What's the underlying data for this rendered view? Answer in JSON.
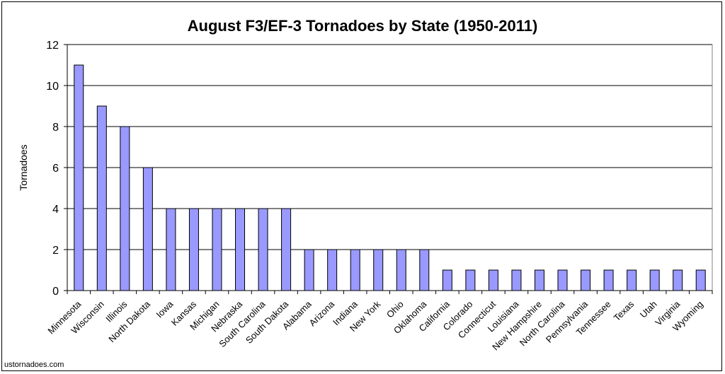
{
  "chart_data": {
    "type": "bar",
    "title": "August F3/EF-3 Tornadoes by State (1950-2011)",
    "ylabel": "Tornadoes",
    "xlabel": "",
    "ylim": [
      0,
      12
    ],
    "yticks": [
      0,
      2,
      4,
      6,
      8,
      10,
      12
    ],
    "grid": true,
    "bar_color": "#9999ff",
    "categories": [
      "Minnesota",
      "Wisconsin",
      "Illinois",
      "North Dakota",
      "Iowa",
      "Kansas",
      "Michigan",
      "Nebraska",
      "South Carolina",
      "South Dakota",
      "Alabama",
      "Arizona",
      "Indiana",
      "New York",
      "Ohio",
      "Oklahoma",
      "California",
      "Colorado",
      "Connecticut",
      "Louisiana",
      "New Hampshire",
      "North Carolina",
      "Pennsylvania",
      "Tennessee",
      "Texas",
      "Utah",
      "Virginia",
      "Wyoming"
    ],
    "values": [
      11,
      9,
      8,
      6,
      4,
      4,
      4,
      4,
      4,
      4,
      2,
      2,
      2,
      2,
      2,
      2,
      1,
      1,
      1,
      1,
      1,
      1,
      1,
      1,
      1,
      1,
      1,
      1
    ]
  },
  "footer": {
    "credit": "ustornadoes.com"
  }
}
